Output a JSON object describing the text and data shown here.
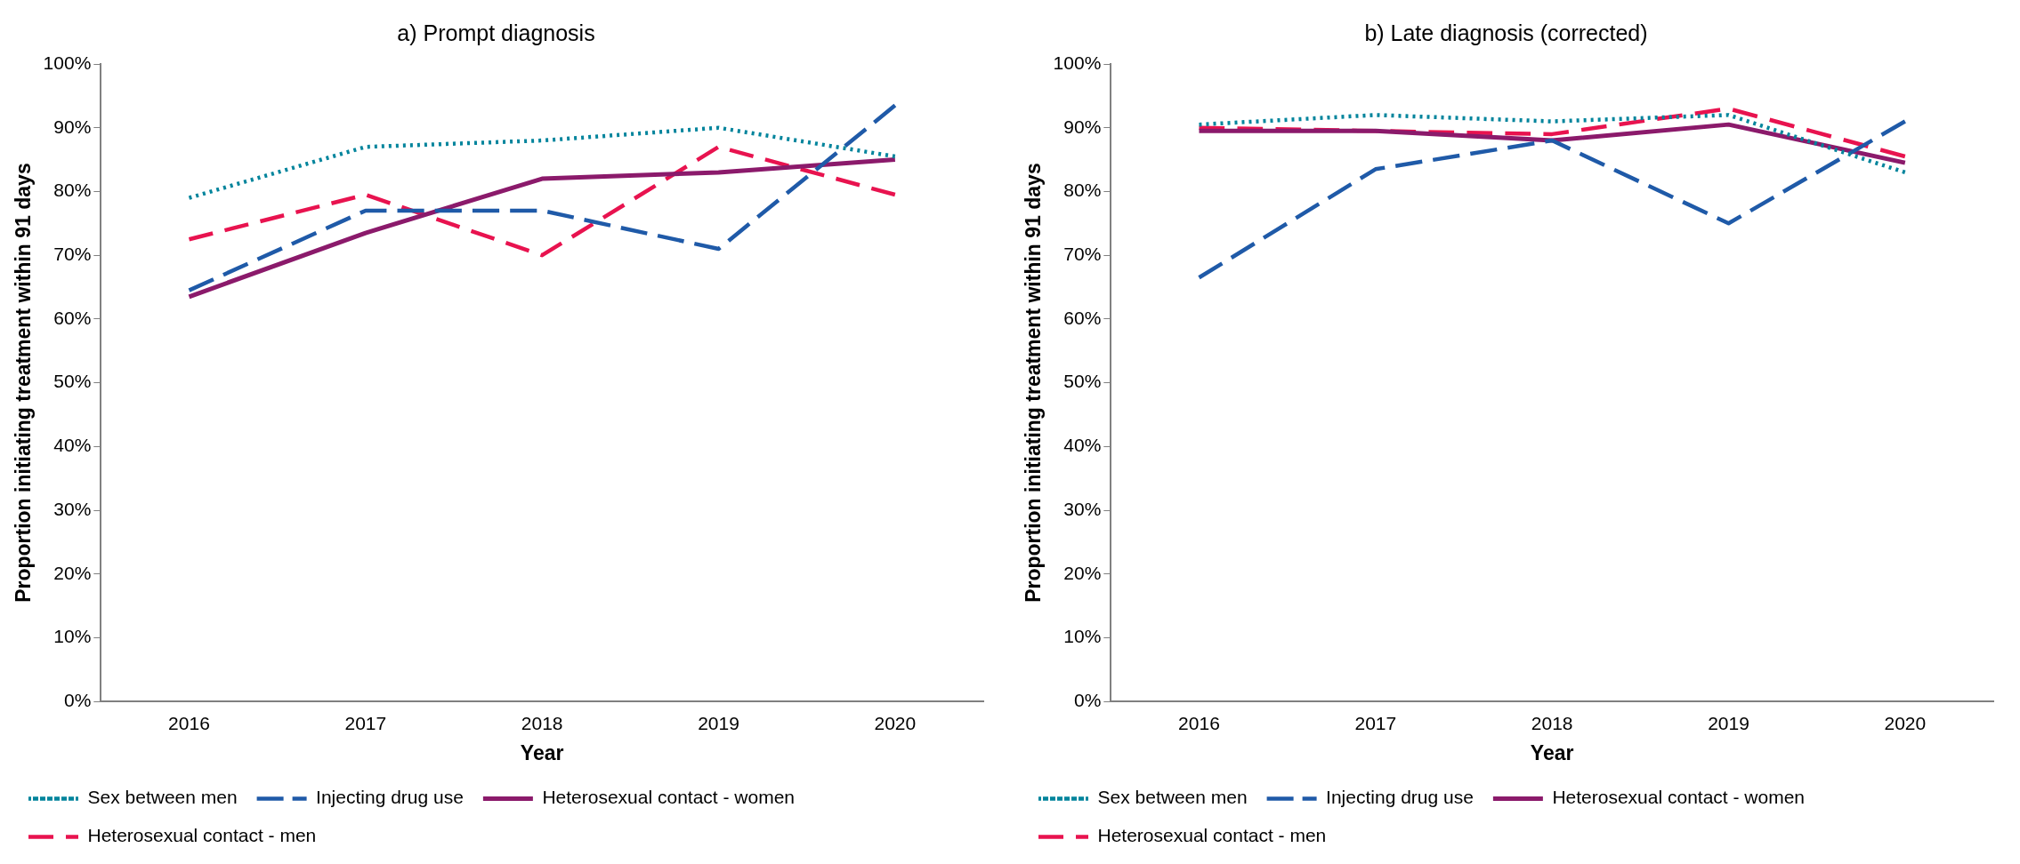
{
  "chart_data": [
    {
      "type": "line",
      "title": "a) Prompt diagnosis",
      "xlabel": "Year",
      "ylabel": "Proportion initiating treatment within 91 days",
      "categories": [
        "2016",
        "2017",
        "2018",
        "2019",
        "2020"
      ],
      "ylim": [
        0,
        100
      ],
      "yticks": [
        {
          "value": 0,
          "label": "0%"
        },
        {
          "value": 10,
          "label": "10%"
        },
        {
          "value": 20,
          "label": "20%"
        },
        {
          "value": 30,
          "label": "30%"
        },
        {
          "value": 40,
          "label": "40%"
        },
        {
          "value": 50,
          "label": "50%"
        },
        {
          "value": 60,
          "label": "60%"
        },
        {
          "value": 70,
          "label": "70%"
        },
        {
          "value": 80,
          "label": "80%"
        },
        {
          "value": 90,
          "label": "90%"
        },
        {
          "value": 100,
          "label": "100%"
        }
      ],
      "grid": false,
      "legend": "bottom",
      "marker": "none",
      "series": [
        {
          "name": "Sex between men",
          "color": "#00849c",
          "line_style": "dotted",
          "values": [
            79,
            87,
            88,
            90,
            85.5
          ]
        },
        {
          "name": "Injecting drug use",
          "color": "#1f5aa8",
          "line_style": "dashed",
          "values": [
            64.5,
            77,
            77,
            71,
            93.5
          ]
        },
        {
          "name": "Heterosexual contact - women",
          "color": "#8b1a6b",
          "line_style": "solid",
          "values": [
            63.5,
            73.5,
            82,
            83,
            85
          ]
        },
        {
          "name": "Heterosexual contact - men",
          "color": "#e8134f",
          "line_style": "dashed",
          "values": [
            72.5,
            79.5,
            70,
            87,
            79.5
          ]
        }
      ]
    },
    {
      "type": "line",
      "title": "b) Late diagnosis (corrected)",
      "xlabel": "Year",
      "ylabel": "Proportion initiating treatment within 91 days",
      "categories": [
        "2016",
        "2017",
        "2018",
        "2019",
        "2020"
      ],
      "ylim": [
        0,
        100
      ],
      "yticks": [
        {
          "value": 0,
          "label": "0%"
        },
        {
          "value": 10,
          "label": "10%"
        },
        {
          "value": 20,
          "label": "20%"
        },
        {
          "value": 30,
          "label": "30%"
        },
        {
          "value": 40,
          "label": "40%"
        },
        {
          "value": 50,
          "label": "50%"
        },
        {
          "value": 60,
          "label": "60%"
        },
        {
          "value": 70,
          "label": "70%"
        },
        {
          "value": 80,
          "label": "80%"
        },
        {
          "value": 90,
          "label": "90%"
        },
        {
          "value": 100,
          "label": "100%"
        }
      ],
      "grid": false,
      "legend": "bottom",
      "marker": "none",
      "series": [
        {
          "name": "Sex between men",
          "color": "#00849c",
          "line_style": "dotted",
          "values": [
            90.5,
            92,
            91,
            92,
            83
          ]
        },
        {
          "name": "Injecting drug use",
          "color": "#1f5aa8",
          "line_style": "dashed",
          "values": [
            66.5,
            83.5,
            88,
            75,
            91
          ]
        },
        {
          "name": "Heterosexual contact - women",
          "color": "#8b1a6b",
          "line_style": "solid",
          "values": [
            89.5,
            89.5,
            88,
            90.5,
            84.5
          ]
        },
        {
          "name": "Heterosexual contact - men",
          "color": "#e8134f",
          "line_style": "dashed",
          "values": [
            90,
            89.5,
            89,
            93,
            85.5
          ]
        }
      ]
    }
  ]
}
